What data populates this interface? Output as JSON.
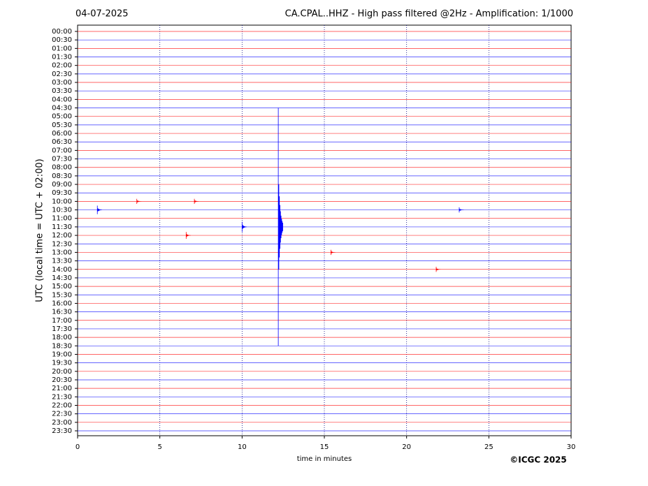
{
  "chart_data": {
    "type": "helicorder",
    "date": "04-07-2025",
    "title": "CA.CPAL..HHZ - High pass filtered @2Hz - Amplification: 1/1000",
    "ylabel": "UTC (local time = UTC + 02:00)",
    "xlabel": "time in minutes",
    "copyright": "©ICGC 2025",
    "rows": [
      "00:00",
      "00:30",
      "01:00",
      "01:30",
      "02:00",
      "02:30",
      "03:00",
      "03:30",
      "04:00",
      "04:30",
      "05:00",
      "05:30",
      "06:00",
      "06:30",
      "07:00",
      "07:30",
      "08:00",
      "08:30",
      "09:00",
      "09:30",
      "10:00",
      "10:30",
      "11:00",
      "11:30",
      "12:00",
      "12:30",
      "13:00",
      "13:30",
      "14:00",
      "14:30",
      "15:00",
      "15:30",
      "16:00",
      "16:30",
      "17:00",
      "17:30",
      "18:00",
      "18:30",
      "19:00",
      "19:30",
      "20:00",
      "20:30",
      "21:00",
      "21:30",
      "22:00",
      "22:30",
      "23:00",
      "23:30"
    ],
    "colors": [
      "#ff0000",
      "#0000ff"
    ],
    "xlim": [
      0,
      30
    ],
    "xticks": [
      0,
      5,
      10,
      15,
      20,
      25,
      30
    ],
    "grid": true,
    "events": [
      {
        "row": "11:30",
        "x": 12.2,
        "amplitude": 14
      },
      {
        "row": "11:30",
        "x": 10,
        "amplitude": 0.6
      },
      {
        "row": "10:30",
        "x": 1.2,
        "amplitude": 0.5
      },
      {
        "row": "12:00",
        "x": 6.6,
        "amplitude": 0.4
      },
      {
        "row": "14:00",
        "x": 21.8,
        "amplitude": 0.3
      },
      {
        "row": "10:30",
        "x": 23.2,
        "amplitude": 0.3
      },
      {
        "row": "13:00",
        "x": 15.4,
        "amplitude": 0.3
      },
      {
        "row": "10:00",
        "x": 3.6,
        "amplitude": 0.3
      },
      {
        "row": "10:00",
        "x": 7.1,
        "amplitude": 0.3
      }
    ]
  }
}
